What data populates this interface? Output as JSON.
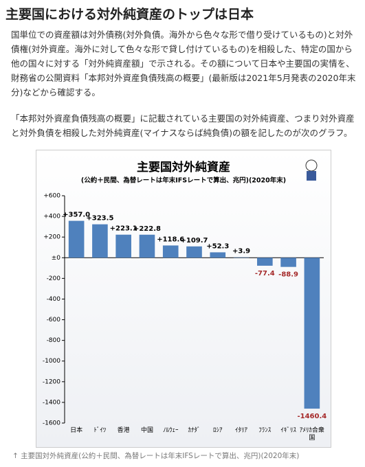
{
  "article": {
    "title": "主要国における対外純資産のトップは日本",
    "paragraphs": [
      "国単位での資産額は対外債務(対外負債。海外から色々な形で借り受けているもの)と対外債権(対外資産。海外に対して色々な形で貸し付けているもの)を相殺した、特定の国から他の国々に対する「対外純資産額」で示される。その額について日本や主要国の実情を、財務省の公開資料「本邦対外資産負債残高の概要」(最新版は2021年5月発表の2020年末分)などから確認する。",
      "「本邦対外資産負債残高の概要」に記載されている主要国の対外純資産、つまり対外資産と対外負債を相殺した対外純資産(マイナスならば純負債)の額を記したのが次のグラフ。"
    ],
    "caption": "↑ 主要国対外純資産(公約＋民間、為替レートは年末IFSレートで算出、兆円)(2020年末)"
  },
  "chart_data": {
    "type": "bar",
    "title": "主要国対外純資産",
    "subtitle": "(公約＋民間、為替レートは年末IFSレートで算出、兆円)(2020年末)",
    "categories": [
      "日本",
      "ﾄﾞｲﾂ",
      "香港",
      "中国",
      "ﾉﾙｳｪｰ",
      "ｶﾅﾀﾞ",
      "ﾛｼｱ",
      "ｲﾀﾘｱ",
      "ﾌﾗﾝｽ",
      "ｲｷﾞﾘｽ",
      "ｱﾒﾘｶ合衆国"
    ],
    "values": [
      357.0,
      323.5,
      223.1,
      222.8,
      118.6,
      109.7,
      52.3,
      3.9,
      -77.4,
      -88.9,
      -1460.4
    ],
    "value_labels": [
      "+357.0",
      "+323.5",
      "+223.1",
      "+222.8",
      "+118.6",
      "+109.7",
      "+52.3",
      "+3.9",
      "-77.4",
      "-88.9",
      "-1460.4"
    ],
    "color": "#4f81bd",
    "negative_label_color": "#a52a2a",
    "ylim": [
      -1600,
      600
    ],
    "yticks": [
      {
        "value": 600,
        "label": "+600"
      },
      {
        "value": 400,
        "label": "+400"
      },
      {
        "value": 200,
        "label": "+200"
      },
      {
        "value": 0,
        "label": "±0"
      },
      -200,
      -400,
      -600,
      -800,
      -1000,
      -1200,
      -1400,
      -1600
    ],
    "grid": false
  }
}
